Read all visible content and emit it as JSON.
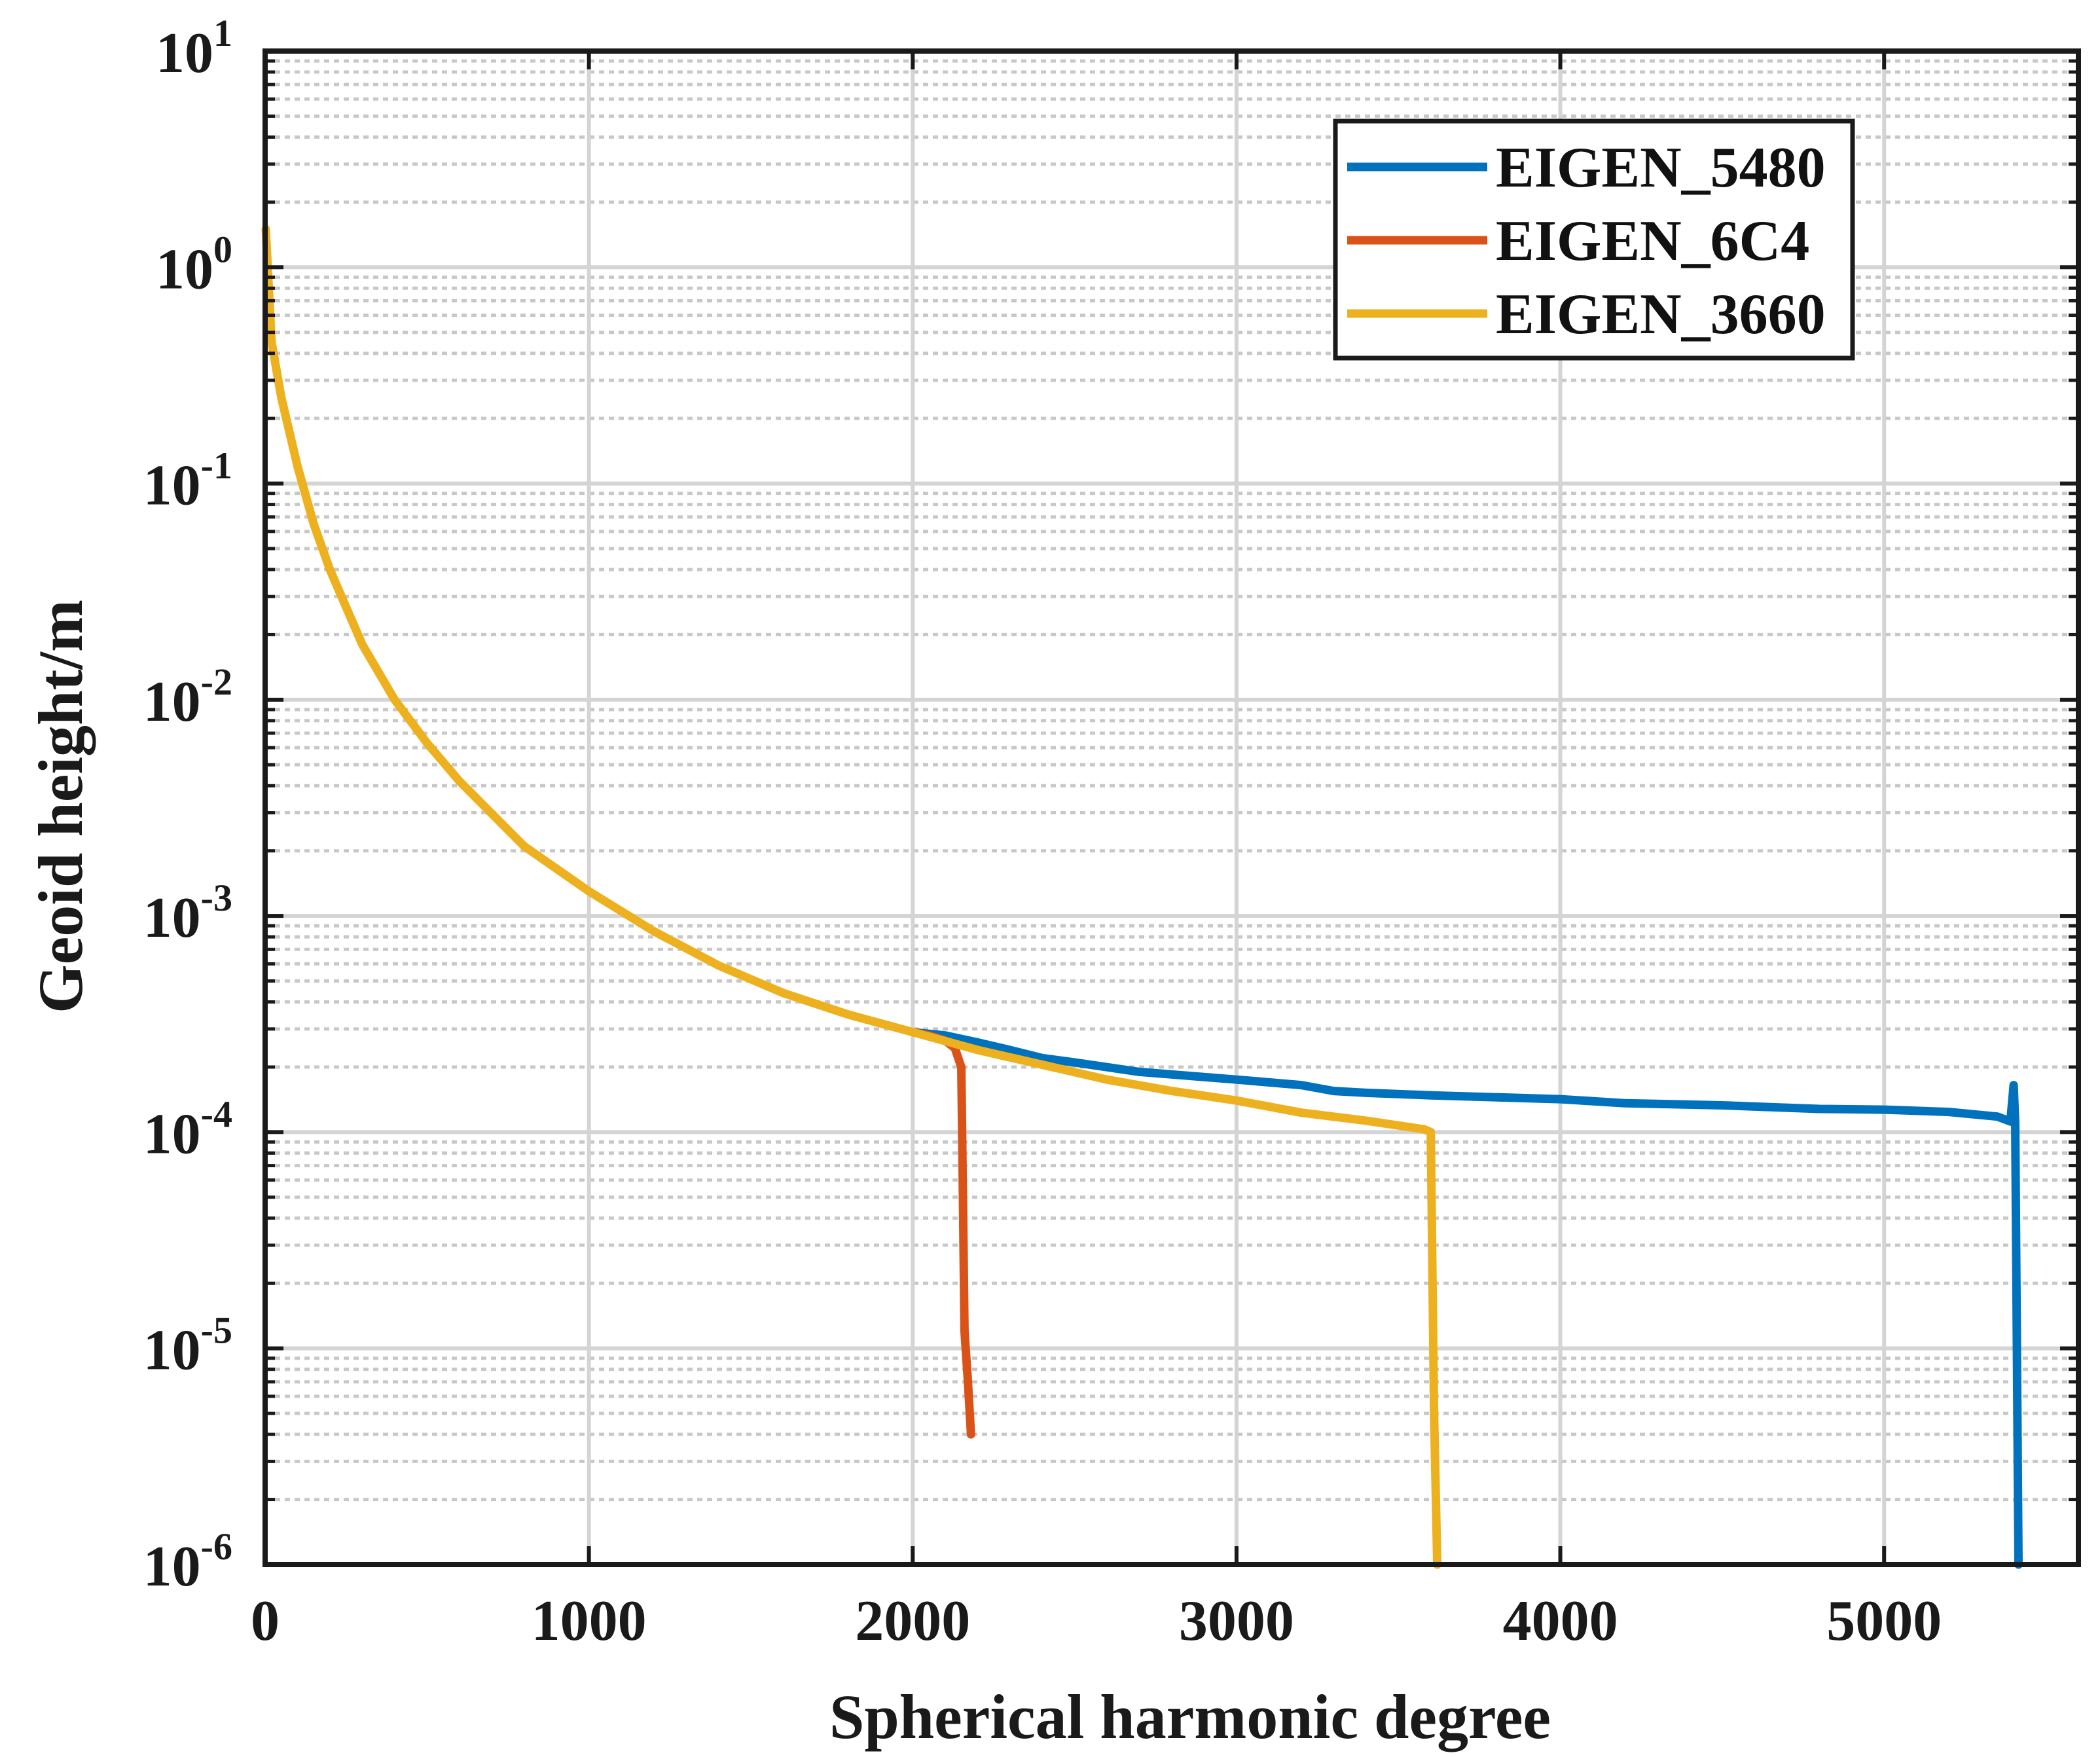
{
  "chart_data": {
    "type": "line",
    "title": "",
    "xlabel": "Spherical harmonic degree",
    "ylabel": "Geoid height/m",
    "xlim": [
      0,
      5600
    ],
    "ylim": [
      1e-06,
      10
    ],
    "yscale": "log",
    "grid": true,
    "legend_position": "top-right",
    "x_ticks": [
      {
        "value": 0,
        "label": "0"
      },
      {
        "value": 1000,
        "label": "1000"
      },
      {
        "value": 2000,
        "label": "2000"
      },
      {
        "value": 3000,
        "label": "3000"
      },
      {
        "value": 4000,
        "label": "4000"
      },
      {
        "value": 5000,
        "label": "5000"
      }
    ],
    "y_ticks": [
      {
        "value": 10,
        "base": "10",
        "exp": "1"
      },
      {
        "value": 1,
        "base": "10",
        "exp": "0"
      },
      {
        "value": 0.1,
        "base": "10",
        "exp": "-1"
      },
      {
        "value": 0.01,
        "base": "10",
        "exp": "-2"
      },
      {
        "value": 0.001,
        "base": "10",
        "exp": "-3"
      },
      {
        "value": 0.0001,
        "base": "10",
        "exp": "-4"
      },
      {
        "value": 1e-05,
        "base": "10",
        "exp": "-5"
      },
      {
        "value": 1e-06,
        "base": "10",
        "exp": "-6"
      }
    ],
    "series": [
      {
        "name": "EIGEN_5480",
        "color": "#0072BD",
        "x": [
          2000,
          2100,
          2200,
          2300,
          2400,
          2500,
          2700,
          3000,
          3200,
          3300,
          3400,
          3600,
          4000,
          4200,
          4500,
          4800,
          5000,
          5200,
          5350,
          5390,
          5400,
          5405,
          5415
        ],
        "y": [
          0.00029,
          0.00028,
          0.00026,
          0.00024,
          0.00022,
          0.00021,
          0.00019,
          0.000175,
          0.000165,
          0.000155,
          0.000152,
          0.000148,
          0.000142,
          0.000136,
          0.000133,
          0.000128,
          0.000127,
          0.000124,
          0.000118,
          0.000112,
          0.000165,
          0.00011,
          1e-06
        ]
      },
      {
        "name": "EIGEN_6C4",
        "color": "#D95319",
        "x": [
          2000,
          2050,
          2100,
          2130,
          2150,
          2155,
          2160,
          2170,
          2180
        ],
        "y": [
          0.00029,
          0.00028,
          0.000265,
          0.000245,
          0.0002,
          5e-05,
          1.2e-05,
          7.2e-06,
          4e-06
        ]
      },
      {
        "name": "EIGEN_3660",
        "color": "#EDB120",
        "x": [
          2,
          20,
          50,
          100,
          150,
          200,
          300,
          400,
          500,
          600,
          800,
          1000,
          1200,
          1400,
          1600,
          1800,
          2000,
          2200,
          2400,
          2600,
          2800,
          3000,
          3200,
          3400,
          3580,
          3600,
          3610,
          3620
        ],
        "y": [
          1.5,
          0.45,
          0.25,
          0.12,
          0.065,
          0.04,
          0.018,
          0.01,
          0.0063,
          0.0042,
          0.0021,
          0.0013,
          0.00085,
          0.00059,
          0.00044,
          0.00035,
          0.00029,
          0.00024,
          0.000205,
          0.000175,
          0.000155,
          0.00014,
          0.000123,
          0.000113,
          0.000103,
          0.0001,
          5e-06,
          1e-06
        ]
      }
    ]
  }
}
